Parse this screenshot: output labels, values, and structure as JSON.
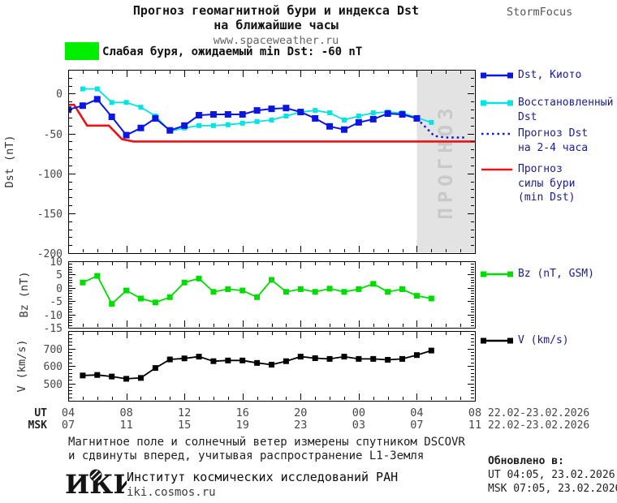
{
  "header": {
    "title_line1": "Прогноз геомагнитной бури и индекса Dst",
    "title_line2": "на ближайшие часы",
    "website": "www.spaceweather.ru",
    "brand": "StormFocus"
  },
  "alert": {
    "text": "Слабая буря, ожидаемый min Dst: -60 nT",
    "color": "#00ef00"
  },
  "colors": {
    "band_bg": "#e3e3e3",
    "band_label": "#c9c9c9",
    "dst_kyoto": "#0b16e0",
    "dst_restored": "#00e4e4",
    "forecast_red": "#ee1111",
    "bz_green": "#00dc00",
    "v_black": "#000000",
    "legend_text": "#1b1b8f"
  },
  "x_axis": {
    "ut_label": "UT",
    "msk_label": "MSK",
    "tick_hours": [
      0,
      4,
      8,
      12,
      16,
      20,
      24,
      28
    ],
    "ut_values": [
      "04",
      "08",
      "12",
      "16",
      "20",
      "00",
      "04",
      "08"
    ],
    "msk_values": [
      "07",
      "11",
      "15",
      "19",
      "23",
      "03",
      "07",
      "11"
    ],
    "ut_date": "22.02-23.02.2026",
    "msk_date": "22.02-23.02.2026"
  },
  "chart_data": [
    {
      "id": "dst",
      "type": "line",
      "ylabel": "Dst (nT)",
      "ylim": [
        -200,
        30
      ],
      "yticks": [
        0,
        -50,
        -100,
        -150,
        -200
      ],
      "y_minor_step": 10,
      "xlim_hours": [
        0,
        28
      ],
      "x_unit": "hours from 04:00 UT 22.02.2026",
      "forecast_band": {
        "from_hour": 24,
        "to_hour": 28,
        "label": "ПРОГНОЗ"
      },
      "series": [
        {
          "key": "storm_forecast",
          "name": "Прогноз силы бури (min Dst)",
          "color": "#ee1111",
          "width": 2.6,
          "x": [
            0,
            0.4,
            1.3,
            2.8,
            3.7,
            4.5,
            28
          ],
          "values": [
            -14,
            -14,
            -40,
            -40,
            -57,
            -60,
            -60
          ]
        },
        {
          "key": "dst_restored",
          "name": "Восстановленный Dst",
          "color": "#00e4e4",
          "width": 1.8,
          "marker": 6,
          "x_start": 1,
          "x_step": 1,
          "values": [
            6,
            6,
            -11,
            -11,
            -17,
            -28,
            -47,
            -43,
            -40,
            -40,
            -39,
            -37,
            -35,
            -33,
            -28,
            -23,
            -21,
            -24,
            -33,
            -28,
            -24,
            -23,
            -24,
            -30,
            -36
          ]
        },
        {
          "key": "dst_kyoto",
          "name": "Dst, Киото",
          "color": "#0b16e0",
          "width": 2,
          "marker": 8,
          "x_start": 0,
          "x_step": 1,
          "values": [
            -20,
            -15,
            -7,
            -29,
            -52,
            -43,
            -31,
            -46,
            -40,
            -27,
            -26,
            -26,
            -26,
            -21,
            -19,
            -18,
            -23,
            -31,
            -41,
            -45,
            -36,
            -32,
            -25,
            -26,
            -31
          ]
        },
        {
          "key": "dst_forecast",
          "name": "Прогноз Dst на 2-4 часа",
          "color": "#0b16e0",
          "width": 2.4,
          "style": "dotted",
          "x": [
            24,
            25.2,
            26,
            27.3
          ],
          "values": [
            -31,
            -53,
            -55,
            -55
          ]
        }
      ]
    },
    {
      "id": "bz",
      "type": "line",
      "ylabel": "Bz (nT)",
      "ylim": [
        -15,
        10
      ],
      "yticks": [
        10,
        5,
        0,
        -5,
        -10,
        -15
      ],
      "y_minor_step": 1,
      "xlim_hours": [
        0,
        28
      ],
      "series": [
        {
          "key": "bz",
          "name": "Bz (nT, GSM)",
          "color": "#00dc00",
          "width": 1.8,
          "marker": 7,
          "x_start": 1,
          "x_step": 1,
          "values": [
            2,
            4.5,
            -6,
            -1,
            -4,
            -5.5,
            -3.5,
            2,
            3.5,
            -1.5,
            -0.5,
            -1,
            -3.5,
            3,
            -1.5,
            -0.5,
            -1.5,
            -0.3,
            -1.5,
            -0.5,
            1.5,
            -1.5,
            -0.5,
            -3,
            -4
          ]
        }
      ]
    },
    {
      "id": "v",
      "type": "line",
      "ylabel": "V (km/s)",
      "ylim": [
        400,
        800
      ],
      "yticks": [
        500,
        600,
        700
      ],
      "y_minor_step": 20,
      "xlim_hours": [
        0,
        28
      ],
      "series": [
        {
          "key": "v",
          "name": "V (km/s)",
          "color": "#000000",
          "width": 1.8,
          "marker": 7,
          "x_start": 1,
          "x_step": 1,
          "values": [
            545,
            548,
            539,
            526,
            531,
            588,
            637,
            643,
            653,
            627,
            631,
            631,
            617,
            607,
            627,
            653,
            644,
            640,
            653,
            640,
            640,
            635,
            640,
            662,
            688
          ]
        }
      ]
    }
  ],
  "legend_main": {
    "items": [
      {
        "lines": [
          "Dst, Киото"
        ],
        "swatch": "line-markers",
        "color": "#0b16e0"
      },
      {
        "lines": [
          "Восстановленный",
          "Dst"
        ],
        "swatch": "line-markers",
        "color": "#00e4e4"
      },
      {
        "lines": [
          "Прогноз Dst",
          "на 2-4 часа"
        ],
        "swatch": "dotted",
        "color": "#0b16e0"
      },
      {
        "lines": [
          "Прогноз",
          "силы бури",
          "(min Dst)"
        ],
        "swatch": "line",
        "color": "#ee1111"
      }
    ]
  },
  "legend_bz": {
    "lines": [
      "Bz (nT, GSM)"
    ],
    "swatch": "line-markers",
    "color": "#00dc00"
  },
  "legend_v": {
    "lines": [
      "V (km/s)"
    ],
    "swatch": "line-markers",
    "color": "#000000"
  },
  "footer": {
    "note_line1": "Магнитное поле и солнечный ветер измерены спутником DSCOVR",
    "note_line2": "и сдвинуты вперед, учитывая распространение L1-Земля",
    "logo_text": "ИКИ",
    "institute": "Институт космических исследований РАН",
    "site": "iki.cosmos.ru",
    "updated_label": "Обновлено в:",
    "updated_ut": "UT  04:05, 23.02.2026",
    "updated_msk": "MSK 07:05, 23.02.2026"
  }
}
